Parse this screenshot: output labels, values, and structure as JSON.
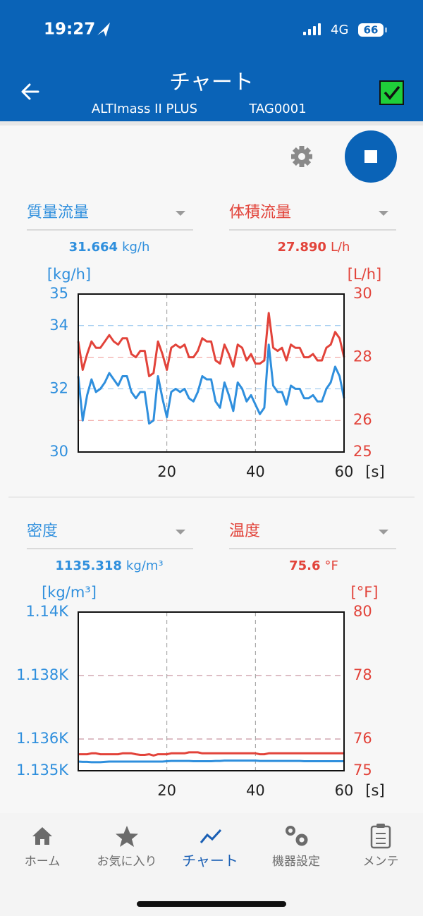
{
  "status_bar": {
    "time": "19:27",
    "network": "4G",
    "battery": "66"
  },
  "header": {
    "title": "チャート",
    "device": "ALTImass II PLUS",
    "tag": "TAG0001"
  },
  "chart_data": [
    {
      "type": "line",
      "ylabel": "[kg/h]",
      "y2label": "[L/h]",
      "xlabel": "[s]",
      "xlim": [
        0,
        60
      ],
      "xticks": [
        20,
        40,
        60
      ],
      "ylim": [
        30,
        35
      ],
      "yticks": [
        30,
        32,
        34,
        35
      ],
      "y2lim": [
        25,
        30
      ],
      "y2ticks": [
        25,
        26,
        28,
        30
      ],
      "grid": true,
      "x": [
        0,
        1,
        2,
        3,
        4,
        5,
        6,
        7,
        8,
        9,
        10,
        11,
        12,
        13,
        14,
        15,
        16,
        17,
        18,
        19,
        20,
        21,
        22,
        23,
        24,
        25,
        26,
        27,
        28,
        29,
        30,
        31,
        32,
        33,
        34,
        35,
        36,
        37,
        38,
        39,
        40,
        41,
        42,
        43,
        44,
        45,
        46,
        47,
        48,
        49,
        50,
        51,
        52,
        53,
        54,
        55,
        56,
        57,
        58,
        59,
        60
      ],
      "series": [
        {
          "name": "質量流量",
          "color": "#2f8fdd",
          "reading": "31.664",
          "unit": "kg/h",
          "values": [
            32.4,
            31.0,
            31.8,
            32.3,
            31.9,
            32.0,
            32.2,
            32.5,
            32.3,
            32.1,
            32.4,
            32.4,
            31.9,
            31.7,
            31.9,
            31.9,
            30.9,
            31.0,
            32.4,
            31.7,
            31.1,
            31.9,
            32.0,
            31.9,
            32.0,
            31.7,
            31.6,
            31.9,
            32.4,
            32.3,
            32.3,
            31.6,
            31.4,
            32.2,
            31.8,
            31.3,
            32.2,
            32.0,
            31.6,
            31.8,
            31.5,
            31.2,
            31.4,
            33.4,
            32.1,
            31.9,
            31.9,
            31.5,
            32.1,
            32.0,
            32.0,
            31.7,
            31.7,
            31.8,
            31.6,
            31.6,
            32.0,
            32.2,
            32.7,
            32.4,
            31.7
          ]
        },
        {
          "name": "体積流量",
          "color": "#e2433a",
          "reading": "27.890",
          "unit": "L/h",
          "axis": "y2",
          "values": [
            28.5,
            27.6,
            28.1,
            28.5,
            28.3,
            28.3,
            28.5,
            28.7,
            28.5,
            28.4,
            28.6,
            28.6,
            28.1,
            28.0,
            28.2,
            28.2,
            27.4,
            27.5,
            28.5,
            28.1,
            27.6,
            28.3,
            28.4,
            28.3,
            28.4,
            28.0,
            28.0,
            28.2,
            28.6,
            28.5,
            28.5,
            27.9,
            27.8,
            28.4,
            28.1,
            27.7,
            28.4,
            28.3,
            27.9,
            28.1,
            27.8,
            27.8,
            27.9,
            29.4,
            28.3,
            28.2,
            28.3,
            27.9,
            28.4,
            28.3,
            28.3,
            28.0,
            28.0,
            28.1,
            27.9,
            27.9,
            28.3,
            28.4,
            28.8,
            28.6,
            28.0
          ]
        }
      ]
    },
    {
      "type": "line",
      "ylabel": "[kg/m³]",
      "y2label": "[°F]",
      "xlabel": "[s]",
      "xlim": [
        0,
        60
      ],
      "xticks": [
        20,
        40,
        60
      ],
      "ylim": [
        1135,
        1140
      ],
      "yticks": [
        {
          "value": 1135,
          "label": "1.135K"
        },
        {
          "value": 1136,
          "label": "1.136K"
        },
        {
          "value": 1138,
          "label": "1.138K"
        },
        {
          "value": 1140,
          "label": "1.14K"
        }
      ],
      "y2lim": [
        75,
        80
      ],
      "y2ticks": [
        75,
        76,
        78,
        80
      ],
      "grid": true,
      "x": [
        0,
        1,
        2,
        3,
        4,
        5,
        6,
        7,
        8,
        9,
        10,
        11,
        12,
        13,
        14,
        15,
        16,
        17,
        18,
        19,
        20,
        21,
        22,
        23,
        24,
        25,
        26,
        27,
        28,
        29,
        30,
        31,
        32,
        33,
        34,
        35,
        36,
        37,
        38,
        39,
        40,
        41,
        42,
        43,
        44,
        45,
        46,
        47,
        48,
        49,
        50,
        51,
        52,
        53,
        54,
        55,
        56,
        57,
        58,
        59,
        60
      ],
      "series": [
        {
          "name": "密度",
          "color": "#2f8fdd",
          "reading": "1135.318",
          "unit": "kg/m³",
          "values": [
            1135.29,
            1135.28,
            1135.28,
            1135.27,
            1135.27,
            1135.27,
            1135.28,
            1135.29,
            1135.29,
            1135.29,
            1135.29,
            1135.29,
            1135.29,
            1135.29,
            1135.29,
            1135.29,
            1135.29,
            1135.29,
            1135.29,
            1135.29,
            1135.3,
            1135.31,
            1135.31,
            1135.31,
            1135.31,
            1135.31,
            1135.3,
            1135.3,
            1135.3,
            1135.3,
            1135.3,
            1135.31,
            1135.31,
            1135.32,
            1135.32,
            1135.32,
            1135.32,
            1135.32,
            1135.32,
            1135.32,
            1135.32,
            1135.31,
            1135.31,
            1135.31,
            1135.31,
            1135.31,
            1135.31,
            1135.31,
            1135.31,
            1135.31,
            1135.31,
            1135.3,
            1135.3,
            1135.3,
            1135.3,
            1135.3,
            1135.3,
            1135.3,
            1135.3,
            1135.3,
            1135.3
          ]
        },
        {
          "name": "温度",
          "color": "#e2433a",
          "reading": "75.6",
          "unit": "°F",
          "axis": "y2",
          "values": [
            75.52,
            75.52,
            75.52,
            75.55,
            75.55,
            75.52,
            75.52,
            75.52,
            75.52,
            75.52,
            75.55,
            75.55,
            75.55,
            75.52,
            75.5,
            75.5,
            75.52,
            75.48,
            75.52,
            75.52,
            75.52,
            75.55,
            75.55,
            75.55,
            75.55,
            75.58,
            75.58,
            75.58,
            75.55,
            75.55,
            75.55,
            75.55,
            75.55,
            75.55,
            75.55,
            75.55,
            75.55,
            75.55,
            75.55,
            75.55,
            75.55,
            75.52,
            75.52,
            75.55,
            75.55,
            75.55,
            75.55,
            75.55,
            75.55,
            75.55,
            75.55,
            75.55,
            75.55,
            75.55,
            75.55,
            75.55,
            75.55,
            75.55,
            75.55,
            75.55,
            75.55
          ]
        }
      ]
    }
  ],
  "nav": {
    "items": [
      "ホーム",
      "お気に入り",
      "チャート",
      "機器設定",
      "メンテ"
    ],
    "active": 2
  }
}
